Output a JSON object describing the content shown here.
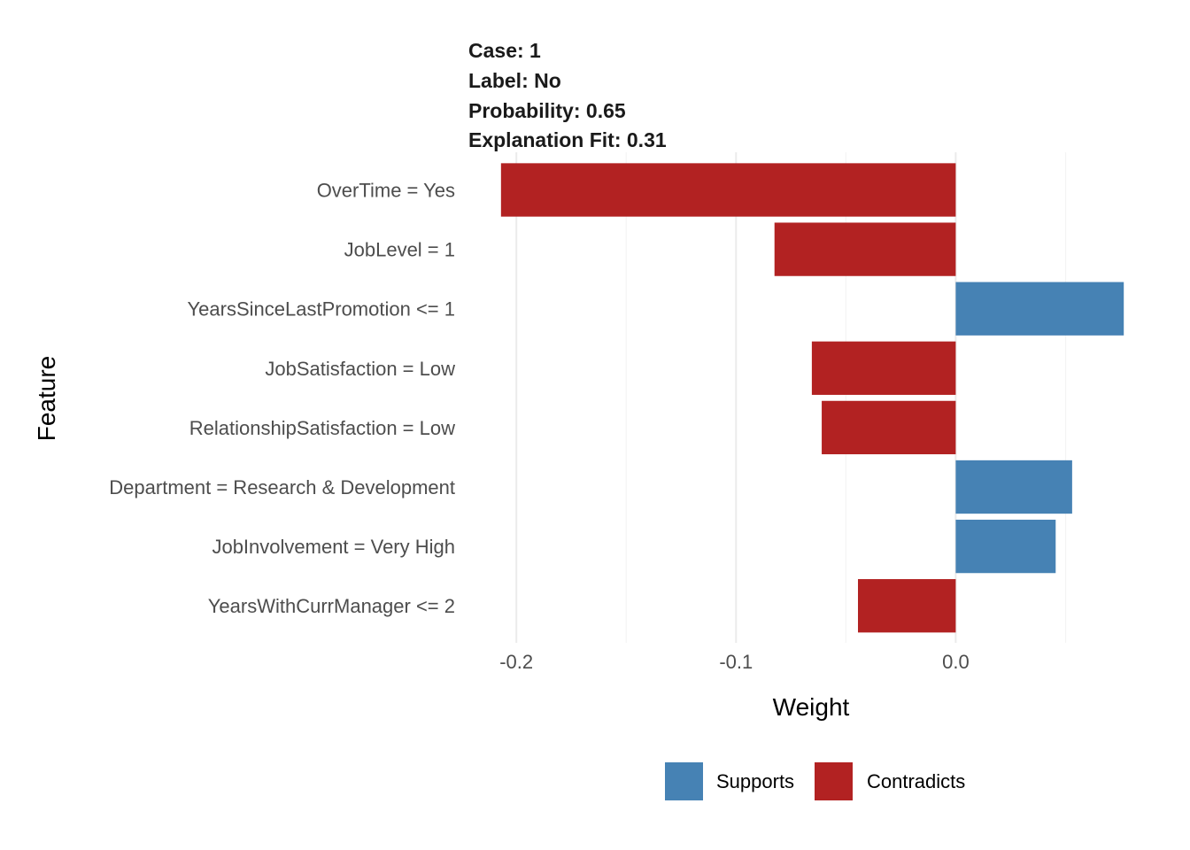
{
  "header": {
    "case": "Case: 1",
    "label": "Label: No",
    "probability": "Probability: 0.65",
    "explanation_fit": "Explanation Fit: 0.31"
  },
  "chart_data": {
    "type": "bar",
    "orientation": "horizontal",
    "xlabel": "Weight",
    "ylabel": "Feature",
    "xlim": [
      -0.207,
      0.076
    ],
    "x_ticks": [
      -0.2,
      -0.1,
      0.0
    ],
    "x_tick_labels": [
      "-0.2",
      "-0.1",
      "0.0"
    ],
    "grid": true,
    "legend_position": "bottom",
    "categories": [
      "OverTime = Yes",
      "JobLevel = 1",
      "YearsSinceLastPromotion <= 1",
      "JobSatisfaction = Low",
      "RelationshipSatisfaction = Low",
      "Department = Research & Development",
      "JobInvolvement = Very High",
      "YearsWithCurrManager <= 2"
    ],
    "values": [
      -0.207,
      -0.0825,
      0.0765,
      -0.0655,
      -0.061,
      0.053,
      0.0455,
      -0.0445
    ],
    "series": [
      {
        "name": "Supports",
        "color": "#4682b4"
      },
      {
        "name": "Contradicts",
        "color": "#b22222"
      }
    ]
  }
}
